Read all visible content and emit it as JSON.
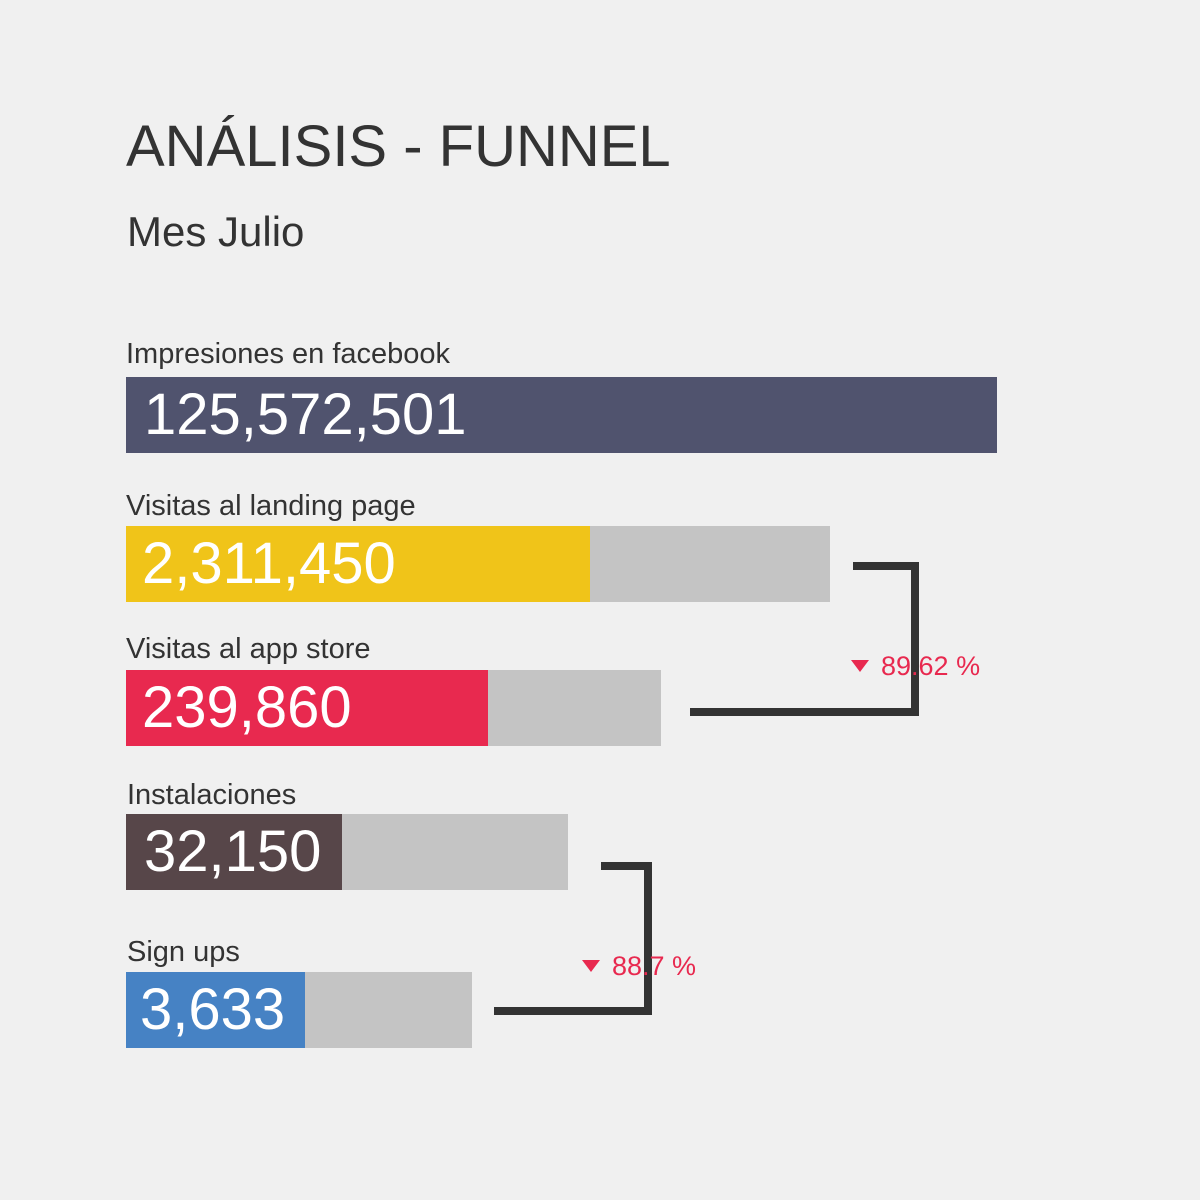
{
  "chart_data": {
    "type": "bar",
    "title": "ANÁLISIS - FUNNEL",
    "subtitle": "Mes Julio",
    "stages": [
      {
        "label": "Impresiones en facebook",
        "value": 125572501,
        "display": "125,572,501",
        "color": "#50536e"
      },
      {
        "label": "Visitas al landing page",
        "value": 2311450,
        "display": "2,311,450",
        "color": "#f0c419"
      },
      {
        "label": "Visitas al app store",
        "value": 239860,
        "display": "239,860",
        "color": "#e8294f"
      },
      {
        "label": "Instalaciones",
        "value": 32150,
        "display": "32,150",
        "color": "#574649"
      },
      {
        "label": "Sign ups",
        "value": 3633,
        "display": "3,633",
        "color": "#4682c4"
      }
    ],
    "track_color": "#c4c4c4",
    "conversions": [
      {
        "from": "Visitas al landing page",
        "to": "Visitas al app store",
        "value": 89.62,
        "display": "89.62 %",
        "direction": "down",
        "color": "#e8294f"
      },
      {
        "from": "Instalaciones",
        "to": "Sign ups",
        "value": 88.7,
        "display": "88.7 %",
        "direction": "down",
        "color": "#e8294f"
      }
    ],
    "connector_color": "#333333",
    "background": "#f0f0f0"
  }
}
